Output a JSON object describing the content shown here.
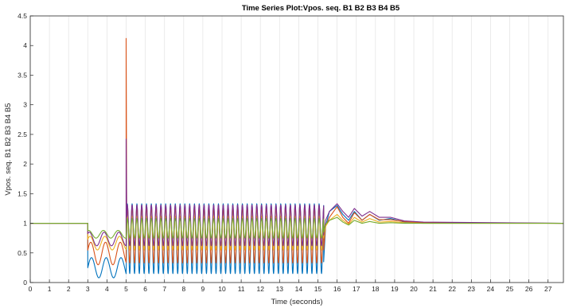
{
  "chart_data": {
    "type": "line",
    "title": "Time Series Plot:Vpos. seq. B1 B2 B3 B4 B5",
    "xlabel": "Time (seconds)",
    "ylabel": "Vpos. seq. B1 B2 B3 B4 B5",
    "xlim": [
      0,
      27.8
    ],
    "ylim": [
      0,
      4.5
    ],
    "x_ticks": [
      "0",
      "1",
      "2",
      "3",
      "4",
      "5",
      "6",
      "7",
      "8",
      "9",
      "10",
      "11",
      "12",
      "13",
      "14",
      "15",
      "16",
      "17",
      "18",
      "19",
      "20",
      "21",
      "22",
      "23",
      "24",
      "25",
      "26",
      "27"
    ],
    "y_ticks": [
      "0",
      "0.5",
      "1",
      "1.5",
      "2",
      "2.5",
      "3",
      "3.5",
      "4",
      "4.5"
    ],
    "grid": "vertical",
    "legend": "none",
    "series": [
      {
        "color": "#0072BD",
        "pre_fault": 1.0,
        "fault_window": [
          3.0,
          5.0
        ],
        "fault_range": [
          0.08,
          0.42
        ],
        "osc_window": [
          5.0,
          15.3
        ],
        "osc_range": [
          0.15,
          1.33
        ],
        "post_fault": [
          [
            15.3,
            0.35
          ],
          [
            15.4,
            0.95
          ],
          [
            15.6,
            1.2
          ],
          [
            16.0,
            1.3
          ],
          [
            16.3,
            1.15
          ],
          [
            16.6,
            1.05
          ],
          [
            16.9,
            1.2
          ],
          [
            17.3,
            1.05
          ],
          [
            17.7,
            1.15
          ],
          [
            18.2,
            1.05
          ],
          [
            18.8,
            1.08
          ],
          [
            19.5,
            1.02
          ],
          [
            20.5,
            1.01
          ],
          [
            27.8,
            1.0
          ]
        ]
      },
      {
        "color": "#D95319",
        "pre_fault": 1.0,
        "fault_window": [
          3.0,
          5.0
        ],
        "fault_range": [
          0.3,
          0.68
        ],
        "spike": [
          5.0,
          4.12
        ],
        "osc_window": [
          5.0,
          15.3
        ],
        "osc_range": [
          0.33,
          1.28
        ],
        "post_fault": [
          [
            15.3,
            0.55
          ],
          [
            15.4,
            0.95
          ],
          [
            15.6,
            1.1
          ],
          [
            16.0,
            1.28
          ],
          [
            16.3,
            1.1
          ],
          [
            16.6,
            1.0
          ],
          [
            16.9,
            1.18
          ],
          [
            17.3,
            1.05
          ],
          [
            17.7,
            1.15
          ],
          [
            18.2,
            1.06
          ],
          [
            18.8,
            1.06
          ],
          [
            19.5,
            1.03
          ],
          [
            20.5,
            1.01
          ],
          [
            27.8,
            1.0
          ]
        ]
      },
      {
        "color": "#EDB120",
        "pre_fault": 1.0,
        "fault_window": [
          3.0,
          5.0
        ],
        "fault_range": [
          0.55,
          0.78
        ],
        "osc_window": [
          5.0,
          15.3
        ],
        "osc_range": [
          0.55,
          1.12
        ],
        "post_fault": [
          [
            15.3,
            0.75
          ],
          [
            15.4,
            0.95
          ],
          [
            15.6,
            1.05
          ],
          [
            16.0,
            1.15
          ],
          [
            16.3,
            1.05
          ],
          [
            16.6,
            0.98
          ],
          [
            16.9,
            1.1
          ],
          [
            17.3,
            1.02
          ],
          [
            17.7,
            1.08
          ],
          [
            18.2,
            1.02
          ],
          [
            18.8,
            1.03
          ],
          [
            19.5,
            1.01
          ],
          [
            20.5,
            1.0
          ],
          [
            27.8,
            1.0
          ]
        ]
      },
      {
        "color": "#7E2F8E",
        "pre_fault": 1.0,
        "fault_window": [
          3.0,
          5.0
        ],
        "fault_range": [
          0.62,
          0.85
        ],
        "spike": [
          5.0,
          2.42
        ],
        "osc_window": [
          5.0,
          15.3
        ],
        "osc_range": [
          0.62,
          1.31
        ],
        "post_fault": [
          [
            15.3,
            0.8
          ],
          [
            15.4,
            1.05
          ],
          [
            15.6,
            1.2
          ],
          [
            16.0,
            1.33
          ],
          [
            16.3,
            1.2
          ],
          [
            16.6,
            1.1
          ],
          [
            16.9,
            1.25
          ],
          [
            17.3,
            1.12
          ],
          [
            17.7,
            1.2
          ],
          [
            18.2,
            1.1
          ],
          [
            18.8,
            1.1
          ],
          [
            19.5,
            1.04
          ],
          [
            20.5,
            1.02
          ],
          [
            27.8,
            1.0
          ]
        ]
      },
      {
        "color": "#77AC30",
        "pre_fault": 1.0,
        "fault_window": [
          3.0,
          5.0
        ],
        "fault_range": [
          0.75,
          0.88
        ],
        "osc_window": [
          5.0,
          15.3
        ],
        "osc_range": [
          0.75,
          1.08
        ],
        "post_fault": [
          [
            15.3,
            0.85
          ],
          [
            15.4,
            0.98
          ],
          [
            15.6,
            1.05
          ],
          [
            16.0,
            1.1
          ],
          [
            16.3,
            1.02
          ],
          [
            16.6,
            0.97
          ],
          [
            16.9,
            1.05
          ],
          [
            17.3,
            1.0
          ],
          [
            17.7,
            1.03
          ],
          [
            18.2,
            1.0
          ],
          [
            18.8,
            1.01
          ],
          [
            19.5,
            1.0
          ],
          [
            20.5,
            1.0
          ],
          [
            27.8,
            1.0
          ]
        ]
      }
    ]
  }
}
